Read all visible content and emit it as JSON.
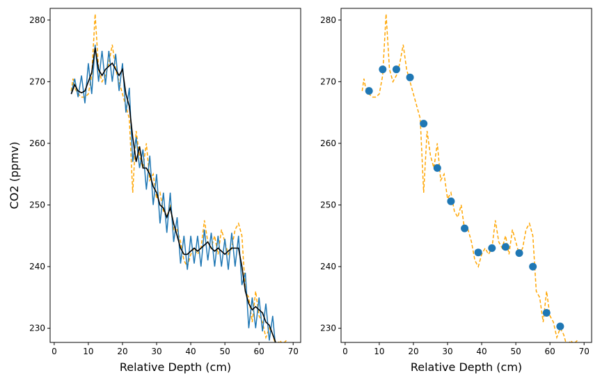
{
  "chart_data": [
    {
      "type": "line",
      "ylabel": "CO2 (ppmv)",
      "xlabel": "Relative Depth (cm)",
      "xlim": [
        -1.2,
        72.2
      ],
      "ylim": [
        227.7,
        281.9
      ],
      "xticks": [
        0,
        10,
        20,
        30,
        40,
        50,
        60,
        70
      ],
      "yticks": [
        230,
        240,
        250,
        260,
        270,
        280
      ],
      "series": [
        {
          "mark": "line",
          "dashed": true,
          "color": "#ffa500",
          "x": [
            5,
            5.5,
            6,
            7,
            8,
            9,
            10,
            11,
            12,
            13,
            14,
            15,
            16,
            17,
            18,
            19,
            20,
            21,
            22,
            23,
            24,
            25,
            26,
            27,
            28,
            29,
            30,
            31,
            32,
            33,
            34,
            35,
            36,
            37,
            38,
            39,
            40,
            41,
            42,
            43,
            44,
            45,
            46,
            47,
            48,
            49,
            50,
            51,
            52,
            53,
            54,
            55,
            56,
            57,
            58,
            59,
            60,
            61,
            62,
            63,
            64,
            65,
            66,
            67,
            68
          ],
          "values": [
            268.5,
            270.5,
            269,
            268,
            267.5,
            267.5,
            268,
            271,
            281,
            272,
            270,
            271,
            273,
            276,
            272,
            270,
            268,
            266,
            264,
            252,
            262,
            258,
            256,
            260,
            254,
            255,
            251,
            252,
            249,
            248,
            250,
            246,
            246,
            244,
            241,
            240,
            242,
            243,
            242,
            243,
            247.5,
            244,
            243,
            245,
            242,
            246,
            244,
            242,
            243,
            246,
            247,
            245,
            236,
            235,
            231,
            236,
            232,
            231,
            228.5,
            230,
            229,
            227,
            228,
            227.5,
            228
          ]
        },
        {
          "mark": "line",
          "dashed": false,
          "color": "#1f77b4",
          "x": [
            5,
            6,
            7,
            8,
            9,
            10,
            11,
            12,
            13,
            14,
            15,
            16,
            17,
            18,
            19,
            20,
            21,
            22,
            23,
            24,
            25,
            26,
            27,
            28,
            29,
            30,
            31,
            32,
            33,
            34,
            35,
            36,
            37,
            38,
            39,
            40,
            41,
            42,
            43,
            44,
            45,
            46,
            47,
            48,
            49,
            50,
            51,
            52,
            53,
            54,
            55,
            56,
            57,
            58,
            59,
            60,
            61,
            62,
            63,
            64,
            65
          ],
          "values": [
            268,
            270.5,
            267.5,
            271,
            266.5,
            273,
            268,
            276,
            270,
            275,
            269.5,
            275,
            270,
            274.5,
            268.5,
            273,
            265,
            269,
            257,
            261,
            256,
            259,
            252.5,
            258,
            250,
            255,
            247,
            252,
            245.5,
            252,
            244,
            248,
            240.5,
            245,
            239.5,
            245,
            240.5,
            245,
            240,
            246,
            241,
            245.5,
            240,
            245,
            240,
            244.5,
            239.5,
            245.5,
            240,
            245,
            237,
            239,
            230,
            235,
            230,
            235,
            229.5,
            234,
            228,
            232,
            226
          ]
        },
        {
          "mark": "line",
          "dashed": false,
          "color": "#000000",
          "x": [
            5,
            6,
            7,
            8,
            9,
            10,
            11,
            12,
            13,
            14,
            15,
            16,
            17,
            18,
            19,
            20,
            21,
            22,
            23,
            24,
            25,
            26,
            27,
            28,
            29,
            30,
            31,
            32,
            33,
            34,
            35,
            36,
            37,
            38,
            39,
            40,
            41,
            42,
            43,
            44,
            45,
            46,
            47,
            48,
            49,
            50,
            51,
            52,
            53,
            54,
            55,
            56,
            57,
            58,
            59,
            60,
            61,
            62,
            63,
            64,
            65
          ],
          "values": [
            268,
            269.5,
            268.5,
            268.2,
            268.5,
            270,
            271.5,
            275.5,
            272,
            271,
            272,
            272.5,
            273,
            272,
            271,
            272,
            268,
            266,
            261,
            257,
            259.5,
            256,
            256,
            255,
            253,
            252,
            250,
            249.5,
            248,
            249.5,
            247,
            245,
            243,
            242,
            242,
            242.5,
            243,
            242.5,
            243,
            243.5,
            244,
            243,
            242.5,
            243,
            242.5,
            242,
            242.5,
            243,
            243,
            243,
            240,
            236,
            234,
            233,
            233.5,
            233,
            232.5,
            231,
            230.5,
            229,
            227.5
          ]
        }
      ]
    },
    {
      "type": "line",
      "xlabel": "Relative Depth (cm)",
      "xlim": [
        -1.2,
        72.2
      ],
      "ylim": [
        227.7,
        281.9
      ],
      "xticks": [
        0,
        10,
        20,
        30,
        40,
        50,
        60,
        70
      ],
      "yticks": [
        230,
        240,
        250,
        260,
        270,
        280
      ],
      "series": [
        {
          "mark": "line",
          "dashed": true,
          "color": "#ffa500",
          "x": [
            5,
            5.5,
            6,
            7,
            8,
            9,
            10,
            11,
            12,
            13,
            14,
            15,
            16,
            17,
            18,
            19,
            20,
            21,
            22,
            23,
            24,
            25,
            26,
            27,
            28,
            29,
            30,
            31,
            32,
            33,
            34,
            35,
            36,
            37,
            38,
            39,
            40,
            41,
            42,
            43,
            44,
            45,
            46,
            47,
            48,
            49,
            50,
            51,
            52,
            53,
            54,
            55,
            56,
            57,
            58,
            59,
            60,
            61,
            62,
            63,
            64,
            65,
            66,
            67,
            68
          ],
          "values": [
            268.5,
            270.5,
            269,
            268,
            267.5,
            267.5,
            268,
            271,
            281,
            272,
            270,
            271,
            273,
            276,
            272,
            270,
            268,
            266,
            264,
            252,
            262,
            258,
            256,
            260,
            254,
            255,
            251,
            252,
            249,
            248,
            250,
            246,
            246,
            244,
            241,
            240,
            242,
            243,
            242,
            243,
            247.5,
            244,
            243,
            245,
            242,
            246,
            244,
            242,
            243,
            246,
            247,
            245,
            236,
            235,
            231,
            236,
            232,
            231,
            228.5,
            230,
            229,
            227,
            228,
            227.5,
            228
          ]
        },
        {
          "mark": "scatter",
          "color": "#1f77b4",
          "x": [
            7,
            11,
            15,
            19,
            23,
            27,
            31,
            35,
            39,
            43,
            47,
            51,
            55,
            59,
            63
          ],
          "values": [
            268.5,
            272,
            272,
            270.7,
            263.2,
            256,
            250.6,
            246.2,
            242.3,
            243,
            243.2,
            242.2,
            240,
            232.5,
            230.3
          ]
        }
      ]
    }
  ]
}
